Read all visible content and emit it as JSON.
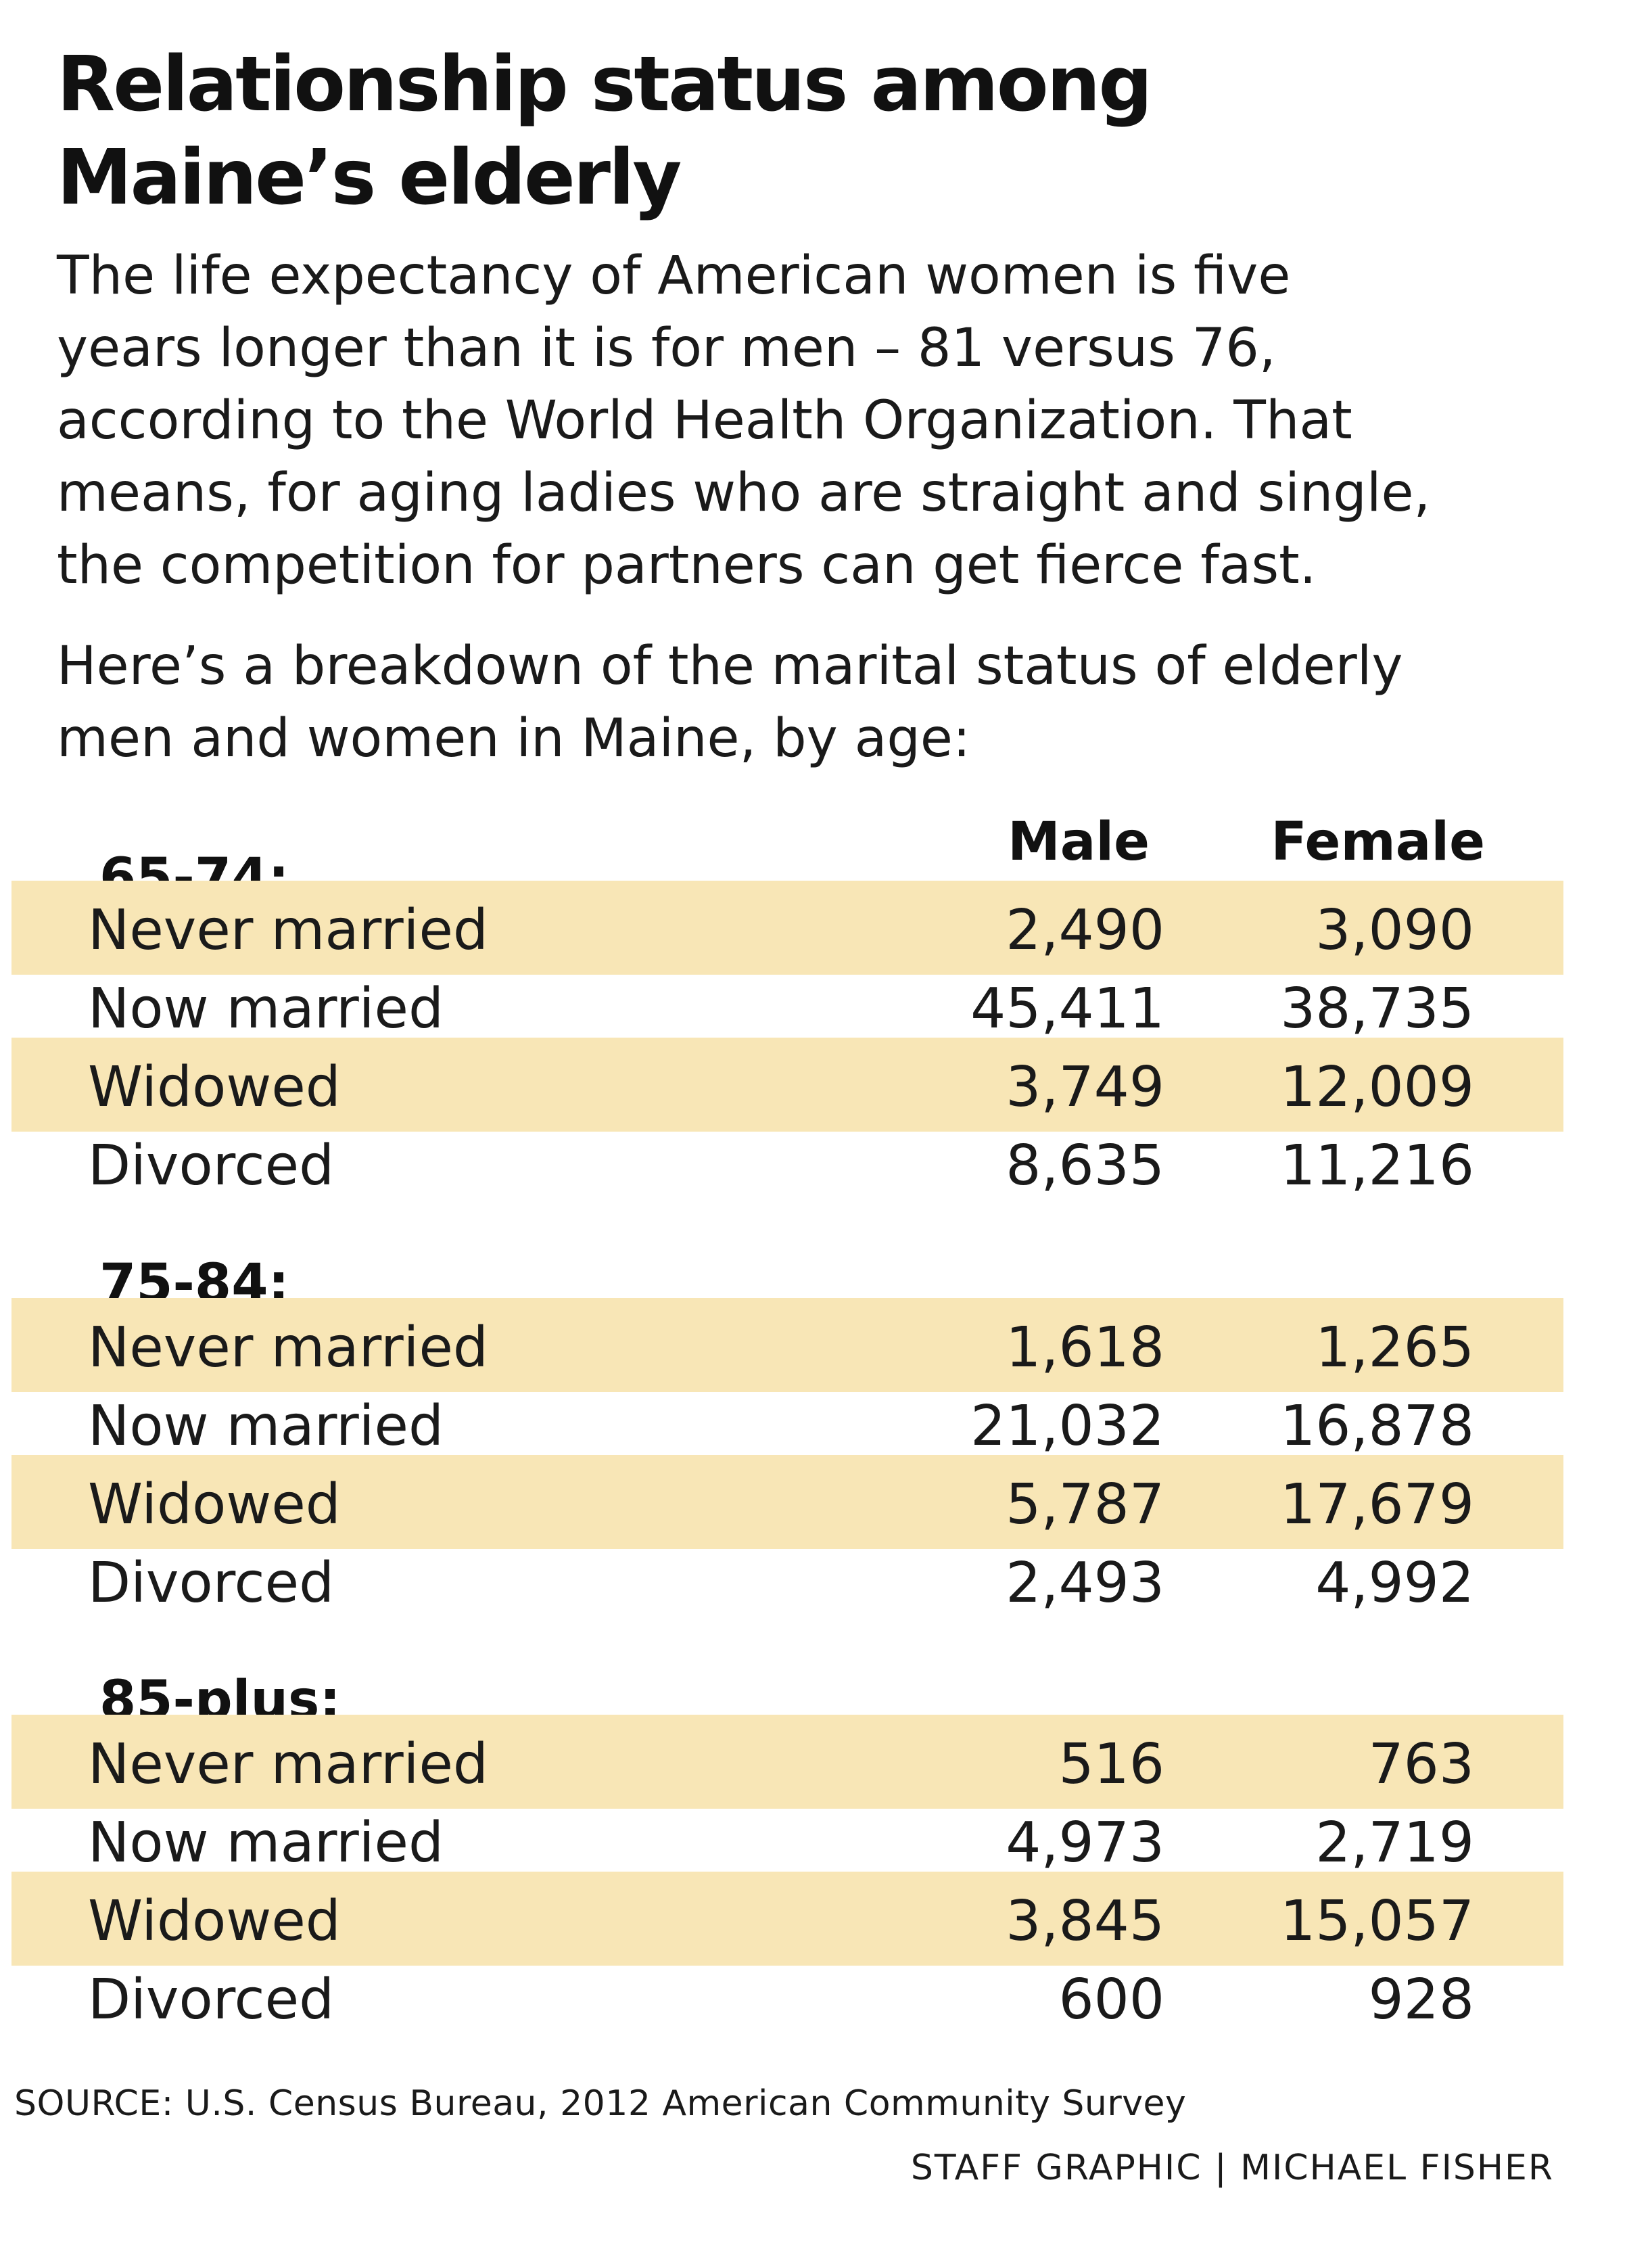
{
  "title_lines": [
    "Relationship status among",
    "Maine’s elderly"
  ],
  "intro_lines": [
    "The life expectancy of American women is five",
    "years longer than it is for men – 81 versus 76,",
    "according to the World Health Organization. That",
    "means, for aging ladies who are straight and single,",
    "the competition for partners can get fierce fast."
  ],
  "intro2_lines": [
    "Here’s a breakdown of the marital status of elderly",
    "men and women in Maine, by age:"
  ],
  "columns": {
    "male": "Male",
    "female": "Female"
  },
  "row_shade_color": "#f8e6b6",
  "chart_data": {
    "type": "table",
    "columns": [
      "Male",
      "Female"
    ],
    "groups": [
      {
        "label": "65-74:",
        "rows": [
          {
            "status": "Never married",
            "male": "2,490",
            "female": "3,090"
          },
          {
            "status": "Now married",
            "male": "45,411",
            "female": "38,735"
          },
          {
            "status": "Widowed",
            "male": "3,749",
            "female": "12,009"
          },
          {
            "status": "Divorced",
            "male": "8,635",
            "female": "11,216"
          }
        ]
      },
      {
        "label": "75-84:",
        "rows": [
          {
            "status": "Never married",
            "male": "1,618",
            "female": "1,265"
          },
          {
            "status": "Now married",
            "male": "21,032",
            "female": "16,878"
          },
          {
            "status": "Widowed",
            "male": "5,787",
            "female": "17,679"
          },
          {
            "status": "Divorced",
            "male": "2,493",
            "female": "4,992"
          }
        ]
      },
      {
        "label": "85-plus:",
        "rows": [
          {
            "status": "Never married",
            "male": "516",
            "female": "763"
          },
          {
            "status": "Now married",
            "male": "4,973",
            "female": "2,719"
          },
          {
            "status": "Widowed",
            "male": "3,845",
            "female": "15,057"
          },
          {
            "status": "Divorced",
            "male": "600",
            "female": "928"
          }
        ]
      }
    ]
  },
  "source": "SOURCE: U.S. Census Bureau, 2012 American Community Survey",
  "credit": "STAFF GRAPHIC | MICHAEL FISHER"
}
